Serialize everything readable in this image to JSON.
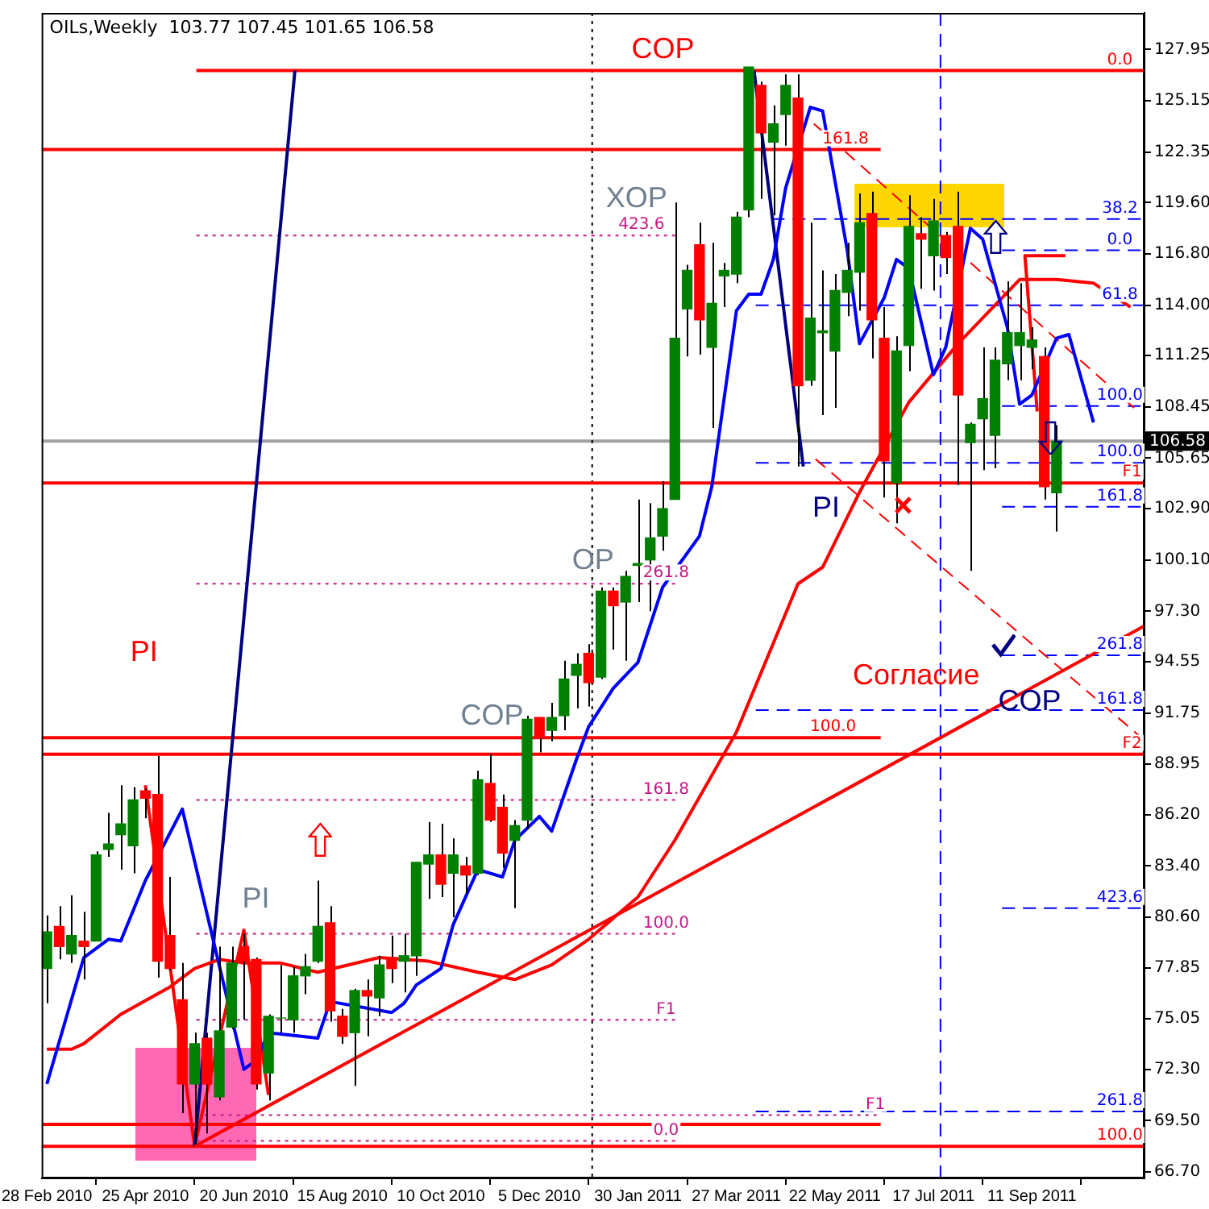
{
  "chart_data": {
    "type": "candlestick",
    "title": "OILs,Weekly  103.77 107.45 101.65 106.58",
    "x": [
      "2010-02-28",
      "2010-03-07",
      "2010-03-14",
      "2010-03-21",
      "2010-03-28",
      "2010-04-04",
      "2010-04-11",
      "2010-04-18",
      "2010-04-25",
      "2010-05-02",
      "2010-05-09",
      "2010-05-16",
      "2010-05-23",
      "2010-05-30",
      "2010-06-06",
      "2010-06-13",
      "2010-06-20",
      "2010-06-27",
      "2010-07-04",
      "2010-07-11",
      "2010-07-18",
      "2010-07-25",
      "2010-08-01",
      "2010-08-08",
      "2010-08-15",
      "2010-08-22",
      "2010-08-29",
      "2010-09-05",
      "2010-09-12",
      "2010-09-19",
      "2010-09-26",
      "2010-10-03",
      "2010-10-10",
      "2010-10-17",
      "2010-10-24",
      "2010-10-31",
      "2010-11-07",
      "2010-11-14",
      "2010-11-21",
      "2010-11-28",
      "2010-12-05",
      "2010-12-12",
      "2010-12-19",
      "2010-12-26",
      "2011-01-02",
      "2011-01-09",
      "2011-01-16",
      "2011-01-23",
      "2011-01-30",
      "2011-02-06",
      "2011-02-13",
      "2011-02-20",
      "2011-02-27",
      "2011-03-06",
      "2011-03-13",
      "2011-03-20",
      "2011-03-27",
      "2011-04-03",
      "2011-04-10",
      "2011-04-17",
      "2011-04-24",
      "2011-05-01",
      "2011-05-08",
      "2011-05-15",
      "2011-05-22",
      "2011-05-29",
      "2011-06-05",
      "2011-06-12",
      "2011-06-19",
      "2011-06-26",
      "2011-07-03",
      "2011-07-10",
      "2011-07-17",
      "2011-07-24",
      "2011-07-31",
      "2011-08-07",
      "2011-08-14",
      "2011-08-21",
      "2011-08-28",
      "2011-09-04",
      "2011-09-11",
      "2011-09-18",
      "2011-09-25"
    ],
    "ohlc": [
      [
        77.8,
        80.7,
        75.9,
        79.8
      ],
      [
        80.1,
        81.2,
        78.3,
        79.0
      ],
      [
        78.6,
        81.8,
        78.1,
        79.6
      ],
      [
        79.3,
        80.9,
        77.2,
        79.0
      ],
      [
        79.3,
        84.2,
        79.3,
        84.0
      ],
      [
        84.3,
        86.3,
        83.9,
        84.6
      ],
      [
        85.1,
        87.8,
        83.2,
        85.7
      ],
      [
        84.5,
        87.7,
        83.0,
        87.0
      ],
      [
        87.5,
        87.6,
        86.0,
        87.1
      ],
      [
        87.3,
        89.4,
        77.3,
        78.2
      ],
      [
        79.6,
        82.8,
        77.7,
        77.8
      ],
      [
        76.1,
        78.1,
        69.9,
        71.5
      ],
      [
        71.5,
        74.3,
        68.2,
        73.7
      ],
      [
        74.0,
        74.3,
        68.8,
        71.5
      ],
      [
        70.8,
        79.0,
        70.6,
        74.4
      ],
      [
        74.6,
        79.0,
        74.5,
        78.1
      ],
      [
        79.0,
        79.7,
        75.0,
        78.2
      ],
      [
        78.3,
        78.4,
        71.2,
        71.5
      ],
      [
        72.1,
        75.3,
        70.6,
        75.2
      ],
      [
        75.1,
        78.0,
        74.3,
        75.1
      ],
      [
        75.0,
        77.9,
        74.3,
        77.4
      ],
      [
        77.4,
        78.6,
        76.4,
        77.9
      ],
      [
        78.2,
        82.6,
        78.1,
        80.1
      ],
      [
        80.3,
        81.2,
        74.9,
        75.5
      ],
      [
        75.2,
        75.6,
        73.7,
        74.1
      ],
      [
        74.3,
        76.7,
        71.4,
        76.6
      ],
      [
        76.6,
        77.2,
        74.1,
        76.3
      ],
      [
        76.2,
        78.5,
        75.2,
        78.0
      ],
      [
        78.4,
        79.6,
        77.0,
        77.8
      ],
      [
        78.2,
        79.7,
        76.5,
        78.5
      ],
      [
        78.5,
        83.6,
        77.4,
        83.6
      ],
      [
        83.5,
        85.8,
        81.6,
        84.0
      ],
      [
        84.0,
        85.7,
        81.7,
        82.4
      ],
      [
        83.0,
        84.9,
        80.6,
        84.0
      ],
      [
        83.4,
        83.9,
        81.9,
        82.9
      ],
      [
        83.0,
        88.6,
        82.9,
        88.1
      ],
      [
        87.9,
        89.5,
        85.8,
        85.9
      ],
      [
        86.6,
        87.3,
        83.3,
        84.1
      ],
      [
        84.8,
        85.9,
        81.1,
        85.6
      ],
      [
        85.9,
        91.6,
        85.4,
        91.4
      ],
      [
        91.5,
        91.5,
        89.6,
        90.4
      ],
      [
        90.8,
        92.3,
        90.2,
        91.5
      ],
      [
        91.6,
        94.6,
        90.8,
        93.6
      ],
      [
        93.8,
        95.0,
        92.0,
        94.4
      ],
      [
        95.0,
        95.5,
        92.1,
        93.4
      ],
      [
        93.7,
        98.6,
        93.6,
        98.4
      ],
      [
        98.4,
        98.6,
        95.2,
        97.6
      ],
      [
        97.8,
        99.5,
        94.6,
        99.2
      ],
      [
        99.8,
        103.4,
        97.8,
        99.9
      ],
      [
        100.1,
        103.2,
        97.3,
        101.3
      ],
      [
        101.4,
        104.4,
        100.6,
        102.9
      ],
      [
        103.4,
        119.6,
        103.4,
        112.2
      ],
      [
        113.8,
        116.2,
        111.2,
        115.9
      ],
      [
        117.3,
        118.5,
        111.3,
        113.2
      ],
      [
        111.7,
        117.4,
        107.3,
        114.1
      ],
      [
        115.6,
        116.3,
        113.9,
        115.9
      ],
      [
        115.7,
        119.1,
        115.2,
        118.8
      ],
      [
        119.2,
        127.0,
        118.8,
        127.0
      ],
      [
        126.0,
        126.2,
        119.8,
        123.4
      ],
      [
        122.9,
        124.9,
        118.9,
        123.9
      ],
      [
        124.4,
        126.6,
        122.7,
        126.0
      ],
      [
        125.3,
        126.6,
        105.2,
        109.6
      ],
      [
        109.9,
        118.5,
        109.6,
        113.3
      ],
      [
        112.5,
        115.9,
        108.0,
        112.6
      ],
      [
        111.5,
        115.7,
        108.4,
        114.8
      ],
      [
        114.7,
        117.4,
        113.4,
        115.9
      ],
      [
        115.8,
        120.1,
        113.7,
        118.5
      ],
      [
        119.0,
        120.2,
        111.1,
        113.2
      ],
      [
        112.2,
        113.9,
        103.5,
        105.5
      ],
      [
        104.3,
        112.3,
        102.1,
        111.5
      ],
      [
        111.8,
        120.0,
        110.4,
        118.3
      ],
      [
        117.9,
        118.8,
        114.9,
        117.6
      ],
      [
        116.7,
        119.8,
        114.8,
        118.6
      ],
      [
        117.8,
        118.0,
        115.7,
        116.6
      ],
      [
        118.3,
        120.2,
        104.2,
        109.1
      ],
      [
        106.5,
        107.6,
        99.5,
        107.5
      ],
      [
        107.8,
        111.7,
        105.0,
        108.9
      ],
      [
        106.9,
        111.7,
        105.1,
        111.0
      ],
      [
        110.8,
        115.3,
        109.9,
        112.5
      ],
      [
        111.8,
        115.2,
        109.9,
        112.5
      ],
      [
        111.7,
        112.8,
        110.5,
        112.1
      ],
      [
        111.2,
        111.7,
        103.4,
        104.1
      ],
      [
        103.77,
        107.45,
        101.65,
        106.58
      ]
    ],
    "colors": [
      "#008000",
      "#ff0000",
      "#008000",
      "#ff0000",
      "#008000",
      "#008000",
      "#008000",
      "#008000",
      "#ff0000",
      "#ff0000",
      "#ff0000",
      "#ff0000",
      "#008000",
      "#ff0000",
      "#008000",
      "#008000",
      "#ff0000",
      "#ff0000",
      "#008000",
      "#008000",
      "#008000",
      "#008000",
      "#008000",
      "#ff0000",
      "#ff0000",
      "#008000",
      "#ff0000",
      "#008000",
      "#ff0000",
      "#008000",
      "#008000",
      "#008000",
      "#ff0000",
      "#008000",
      "#ff0000",
      "#008000",
      "#ff0000",
      "#ff0000",
      "#008000",
      "#008000",
      "#ff0000",
      "#008000",
      "#008000",
      "#008000",
      "#ff0000",
      "#008000",
      "#ff0000",
      "#008000",
      "#008000",
      "#008000",
      "#008000",
      "#008000",
      "#008000",
      "#ff0000",
      "#008000",
      "#008000",
      "#008000",
      "#008000",
      "#ff0000",
      "#008000",
      "#008000",
      "#ff0000",
      "#008000",
      "#008000",
      "#008000",
      "#008000",
      "#008000",
      "#ff0000",
      "#ff0000",
      "#008000",
      "#008000",
      "#ff0000",
      "#008000",
      "#ff0000",
      "#ff0000",
      "#008000",
      "#008000",
      "#008000",
      "#008000",
      "#008000",
      "#008000",
      "#ff0000",
      "#008000"
    ],
    "series": [
      {
        "type": "line",
        "color": "#0000ff",
        "x": [
          "2010-02-28",
          "2010-03-21",
          "2010-04-04",
          "2010-04-11",
          "2010-04-25",
          "2010-05-16",
          "2010-05-30",
          "2010-06-20",
          "2010-06-27",
          "2010-07-04",
          "2010-08-01",
          "2010-08-08",
          "2010-09-12",
          "2010-09-19",
          "2010-09-26",
          "2010-10-10",
          "2010-10-17",
          "2010-10-31",
          "2010-11-14",
          "2010-11-21",
          "2010-12-05",
          "2010-12-12",
          "2010-12-26",
          "2011-01-02",
          "2011-01-16",
          "2011-01-30",
          "2011-02-13",
          "2011-03-06",
          "2011-03-13",
          "2011-03-27",
          "2011-04-03",
          "2011-04-10",
          "2011-04-17",
          "2011-04-24",
          "2011-05-08",
          "2011-05-15",
          "2011-05-29",
          "2011-06-05",
          "2011-06-19",
          "2011-06-26",
          "2011-07-03",
          "2011-07-17",
          "2011-07-24",
          "2011-08-07",
          "2011-08-14",
          "2011-08-28",
          "2011-09-04",
          "2011-09-11",
          "2011-09-25",
          "2011-10-02",
          "2011-10-16"
        ],
        "values": [
          71.5,
          78.4,
          79.4,
          79.3,
          82.6,
          86.5,
          80.8,
          72.3,
          72.8,
          74.3,
          74.0,
          76.0,
          75.4,
          75.9,
          76.9,
          77.8,
          80.2,
          83.2,
          82.8,
          84.8,
          86.1,
          85.3,
          89.2,
          91.0,
          93.1,
          94.5,
          98.6,
          101.4,
          104.1,
          113.7,
          114.6,
          114.6,
          116.5,
          120.4,
          124.8,
          124.6,
          117.0,
          111.9,
          114.4,
          116.5,
          116.0,
          110.2,
          111.7,
          118.2,
          117.6,
          112.8,
          108.6,
          109.1,
          112.2,
          112.4,
          107.6
        ]
      },
      {
        "type": "line",
        "color": "#ff0000",
        "x": [
          "2010-02-28",
          "2010-03-14",
          "2010-03-21",
          "2010-04-11",
          "2010-05-09",
          "2010-05-23",
          "2010-06-06",
          "2010-06-20",
          "2010-07-11",
          "2010-08-01",
          "2010-09-05",
          "2010-10-03",
          "2010-10-31",
          "2010-11-21",
          "2010-12-12",
          "2011-01-02",
          "2011-01-30",
          "2011-02-20",
          "2011-03-27",
          "2011-05-01",
          "2011-05-15",
          "2011-06-05",
          "2011-07-03",
          "2011-07-31",
          "2011-08-21",
          "2011-09-04",
          "2011-09-25",
          "2011-10-16",
          "2011-11-06"
        ],
        "values": [
          73.4,
          73.4,
          73.7,
          75.3,
          76.8,
          77.8,
          78.3,
          78.1,
          78.1,
          77.6,
          78.4,
          78.2,
          77.6,
          77.2,
          78.0,
          79.4,
          81.7,
          84.8,
          90.7,
          98.8,
          99.7,
          103.8,
          108.7,
          111.9,
          114.0,
          115.4,
          115.4,
          115.2,
          113.9
        ]
      },
      {
        "type": "line",
        "color": "#ff0000",
        "x": [
          "2010-05-23",
          "2011-11-14"
        ],
        "values": [
          68.1,
          96.5
        ]
      },
      {
        "type": "line",
        "color": "#000080",
        "x": [
          "2010-05-23",
          "2010-07-19"
        ],
        "values": [
          68.1,
          126.8
        ]
      },
      {
        "type": "line",
        "color": "#000080",
        "x": [
          "2011-04-06",
          "2011-05-04"
        ],
        "values": [
          126.8,
          105.2
        ]
      },
      {
        "type": "line",
        "color": "#ff0000",
        "x": [
          "2010-04-25",
          "2010-05-23",
          "2010-06-20",
          "2010-07-04"
        ],
        "values": [
          87.8,
          68.1,
          79.9,
          70.9
        ]
      },
      {
        "type": "line",
        "color": "#ff0000",
        "x": [
          "2011-09-30",
          "2011-09-07",
          "2011-09-14"
        ],
        "values": [
          116.7,
          116.7,
          108.2
        ]
      },
      {
        "type": "line",
        "color": "#ff0000",
        "line_style": "dashed",
        "x": [
          "2011-05-10",
          "2011-11-08"
        ],
        "values": [
          123.9,
          108.4
        ]
      },
      {
        "type": "line",
        "color": "#ff0000",
        "line_style": "dashed",
        "x": [
          "2011-05-11",
          "2011-11-11"
        ],
        "values": [
          105.6,
          90.5
        ]
      },
      {
        "type": "line",
        "color": "#ff0000",
        "x": [
          "2010-05-24",
          "2011-11-14"
        ],
        "values": [
          126.8,
          126.8
        ]
      },
      {
        "type": "line",
        "color": "#ff0000",
        "x": [
          "2010-02-25",
          "2011-06-17"
        ],
        "values": [
          122.5,
          122.5
        ]
      },
      {
        "type": "line",
        "color": "#0000ff",
        "line_style": "dashed",
        "x": [
          "2011-04-16",
          "2011-11-14"
        ],
        "values": [
          118.7,
          118.7
        ]
      },
      {
        "type": "line",
        "color": "#c71585",
        "line_style": "dotted",
        "x": [
          "2010-05-24",
          "2011-02-22"
        ],
        "values": [
          117.8,
          117.8
        ]
      },
      {
        "type": "line",
        "color": "#0000ff",
        "line_style": "dashed",
        "x": [
          "2011-08-25",
          "2011-11-14"
        ],
        "values": [
          117.0,
          117.0
        ]
      },
      {
        "type": "line",
        "color": "#0000ff",
        "line_style": "dashed",
        "x": [
          "2011-04-07",
          "2011-11-14"
        ],
        "values": [
          114.0,
          114.0
        ]
      },
      {
        "type": "line",
        "color": "#0000ff",
        "line_style": "dashed",
        "x": [
          "2011-08-25",
          "2011-11-14"
        ],
        "values": [
          108.5,
          108.5
        ]
      },
      {
        "type": "line",
        "color": "#0000ff",
        "line_style": "dashed",
        "x": [
          "2011-04-07",
          "2011-11-14"
        ],
        "values": [
          105.4,
          105.4
        ]
      },
      {
        "type": "line",
        "color": "#ff0000",
        "x": [
          "2010-02-25",
          "2011-11-14"
        ],
        "values": [
          104.3,
          104.3
        ]
      },
      {
        "type": "line",
        "color": "#0000ff",
        "line_style": "dashed",
        "x": [
          "2011-08-25",
          "2011-11-14"
        ],
        "values": [
          103.0,
          103.0
        ]
      },
      {
        "type": "line",
        "color": "#c71585",
        "line_style": "dotted",
        "x": [
          "2010-05-24",
          "2011-02-22"
        ],
        "values": [
          98.8,
          98.8
        ]
      },
      {
        "type": "line",
        "color": "#0000ff",
        "line_style": "dashed",
        "x": [
          "2011-08-25",
          "2011-11-14"
        ],
        "values": [
          94.9,
          94.9
        ]
      },
      {
        "type": "line",
        "color": "#0000ff",
        "line_style": "dashed",
        "x": [
          "2011-04-07",
          "2011-11-14"
        ],
        "values": [
          91.9,
          91.9
        ]
      },
      {
        "type": "line",
        "color": "#ff0000",
        "x": [
          "2010-02-25",
          "2011-06-17"
        ],
        "values": [
          90.4,
          90.4
        ]
      },
      {
        "type": "line",
        "color": "#ff0000",
        "x": [
          "2010-02-25",
          "2011-11-14"
        ],
        "values": [
          89.5,
          89.5
        ]
      },
      {
        "type": "line",
        "color": "#c71585",
        "line_style": "dotted",
        "x": [
          "2010-05-24",
          "2011-02-22"
        ],
        "values": [
          87.0,
          87.0
        ]
      },
      {
        "type": "line",
        "color": "#0000ff",
        "line_style": "dashed",
        "x": [
          "2011-08-25",
          "2011-11-14"
        ],
        "values": [
          81.1,
          81.1
        ]
      },
      {
        "type": "line",
        "color": "#c71585",
        "line_style": "dotted",
        "x": [
          "2010-05-24",
          "2011-02-22"
        ],
        "values": [
          79.7,
          79.7
        ]
      },
      {
        "type": "line",
        "color": "#c71585",
        "line_style": "dotted",
        "x": [
          "2010-05-24",
          "2011-02-22"
        ],
        "values": [
          75.0,
          75.0
        ]
      },
      {
        "type": "line",
        "color": "#0000ff",
        "line_style": "dashed",
        "x": [
          "2011-04-07",
          "2011-11-14"
        ],
        "values": [
          70.0,
          70.0
        ]
      },
      {
        "type": "line",
        "color": "#c71585",
        "line_style": "dotted",
        "x": [
          "2010-05-24",
          "2011-06-17"
        ],
        "values": [
          69.8,
          69.8
        ]
      },
      {
        "type": "line",
        "color": "#ff0000",
        "x": [
          "2010-02-25",
          "2011-06-17"
        ],
        "values": [
          69.3,
          69.3
        ]
      },
      {
        "type": "line",
        "color": "#c71585",
        "line_style": "dotted",
        "x": [
          "2010-05-24",
          "2011-02-22"
        ],
        "values": [
          68.4,
          68.4
        ]
      },
      {
        "type": "line",
        "color": "#ff0000",
        "x": [
          "2010-02-25",
          "2011-11-14"
        ],
        "values": [
          68.1,
          68.1
        ]
      }
    ],
    "xlim": [
      "2010-02-25",
      "2011-11-14"
    ],
    "xticks": [
      {
        "value": "2010-02-28",
        "label": "28 Feb 2010"
      },
      {
        "value": "2010-04-25",
        "label": "25 Apr 2010"
      },
      {
        "value": "2010-06-20",
        "label": "20 Jun 2010"
      },
      {
        "value": "2010-08-15",
        "label": "15 Aug 2010"
      },
      {
        "value": "2010-10-10",
        "label": "10 Oct 2010"
      },
      {
        "value": "2010-12-05",
        "label": "5 Dec 2010"
      },
      {
        "value": "2011-01-30",
        "label": "30 Jan 2011"
      },
      {
        "value": "2011-03-27",
        "label": "27 Mar 2011"
      },
      {
        "value": "2011-05-22",
        "label": "22 May 2011"
      },
      {
        "value": "2011-07-17",
        "label": "17 Jul 2011"
      },
      {
        "value": "2011-09-11",
        "label": "11 Sep 2011"
      }
    ],
    "ylim": [
      66.35,
      129.95
    ],
    "yticks": [
      127.95,
      125.15,
      122.35,
      {
        "value": 119.6,
        "label": "119.60"
      },
      {
        "value": 116.8,
        "label": "116.80"
      },
      {
        "value": 114,
        "label": "114.00"
      },
      111.25,
      108.45,
      105.65,
      {
        "value": 102.9,
        "label": "102.90"
      },
      {
        "value": 100.1,
        "label": "100.10"
      },
      {
        "value": 97.3,
        "label": "97.30"
      },
      94.55,
      91.75,
      88.95,
      {
        "value": 86.2,
        "label": "86.20"
      },
      {
        "value": 83.4,
        "label": "83.40"
      },
      {
        "value": 80.6,
        "label": "80.60"
      },
      77.85,
      75.05,
      {
        "value": 72.3,
        "label": "72.30"
      },
      {
        "value": 69.5,
        "label": "69.50"
      },
      {
        "value": 66.7,
        "label": "66.70"
      }
    ],
    "ref_lines": [
      {
        "axis": "y",
        "value": 106.58,
        "label": "106.58",
        "color": "#a0a0a0"
      },
      {
        "axis": "x",
        "value": "2011-01-04",
        "color": "#000000",
        "line_style": "dotted"
      },
      {
        "axis": "x",
        "value": "2011-07-21",
        "color": "#0000ff",
        "line_style": "dashed"
      }
    ],
    "annotations": [
      {
        "text": "0.0",
        "x": "2011-10-31",
        "y": 126.8
      },
      {
        "text": "161.8",
        "x": "2011-05-28",
        "y": 122.5
      },
      {
        "text": "38.2",
        "x": "2011-10-31",
        "y": 118.7
      },
      {
        "text": "423.6",
        "x": "2011-02-01",
        "y": 117.8
      },
      {
        "text": "0.0",
        "x": "2011-10-31",
        "y": 117.0
      },
      {
        "text": "61.8",
        "x": "2011-10-31",
        "y": 114.0
      },
      {
        "text": "100.0",
        "x": "2011-10-31",
        "y": 108.5
      },
      {
        "text": "100.0",
        "x": "2011-10-31",
        "y": 105.4
      },
      {
        "text": "F1",
        "x": "2011-11-07",
        "y": 104.3
      },
      {
        "text": "161.8",
        "x": "2011-10-31",
        "y": 103.0
      },
      {
        "text": "261.8",
        "x": "2011-02-15",
        "y": 98.8
      },
      {
        "text": "261.8",
        "x": "2011-10-31",
        "y": 94.9
      },
      {
        "text": "161.8",
        "x": "2011-10-31",
        "y": 91.9
      },
      {
        "text": "100.0",
        "x": "2011-05-21",
        "y": 90.4
      },
      {
        "text": "F2",
        "x": "2011-11-07",
        "y": 89.5
      },
      {
        "text": "161.8",
        "x": "2011-02-15",
        "y": 87.0
      },
      {
        "text": "423.6",
        "x": "2011-10-31",
        "y": 81.1
      },
      {
        "text": "100.0",
        "x": "2011-02-15",
        "y": 79.7
      },
      {
        "text": "F1",
        "x": "2011-02-15",
        "y": 75.0
      },
      {
        "text": "261.8",
        "x": "2011-10-31",
        "y": 70.0
      },
      {
        "text": "F1",
        "x": "2011-06-14",
        "y": 69.8
      },
      {
        "text": "0.0",
        "x": "2011-02-15",
        "y": 68.4
      },
      {
        "text": "100.0",
        "x": "2011-10-31",
        "y": 68.1
      },
      "COP",
      "PI",
      "PI",
      "COP",
      "OP",
      "XOP",
      "PI",
      "Согласие",
      "COP"
    ],
    "grid": false,
    "legend": false,
    "marker": "none"
  }
}
